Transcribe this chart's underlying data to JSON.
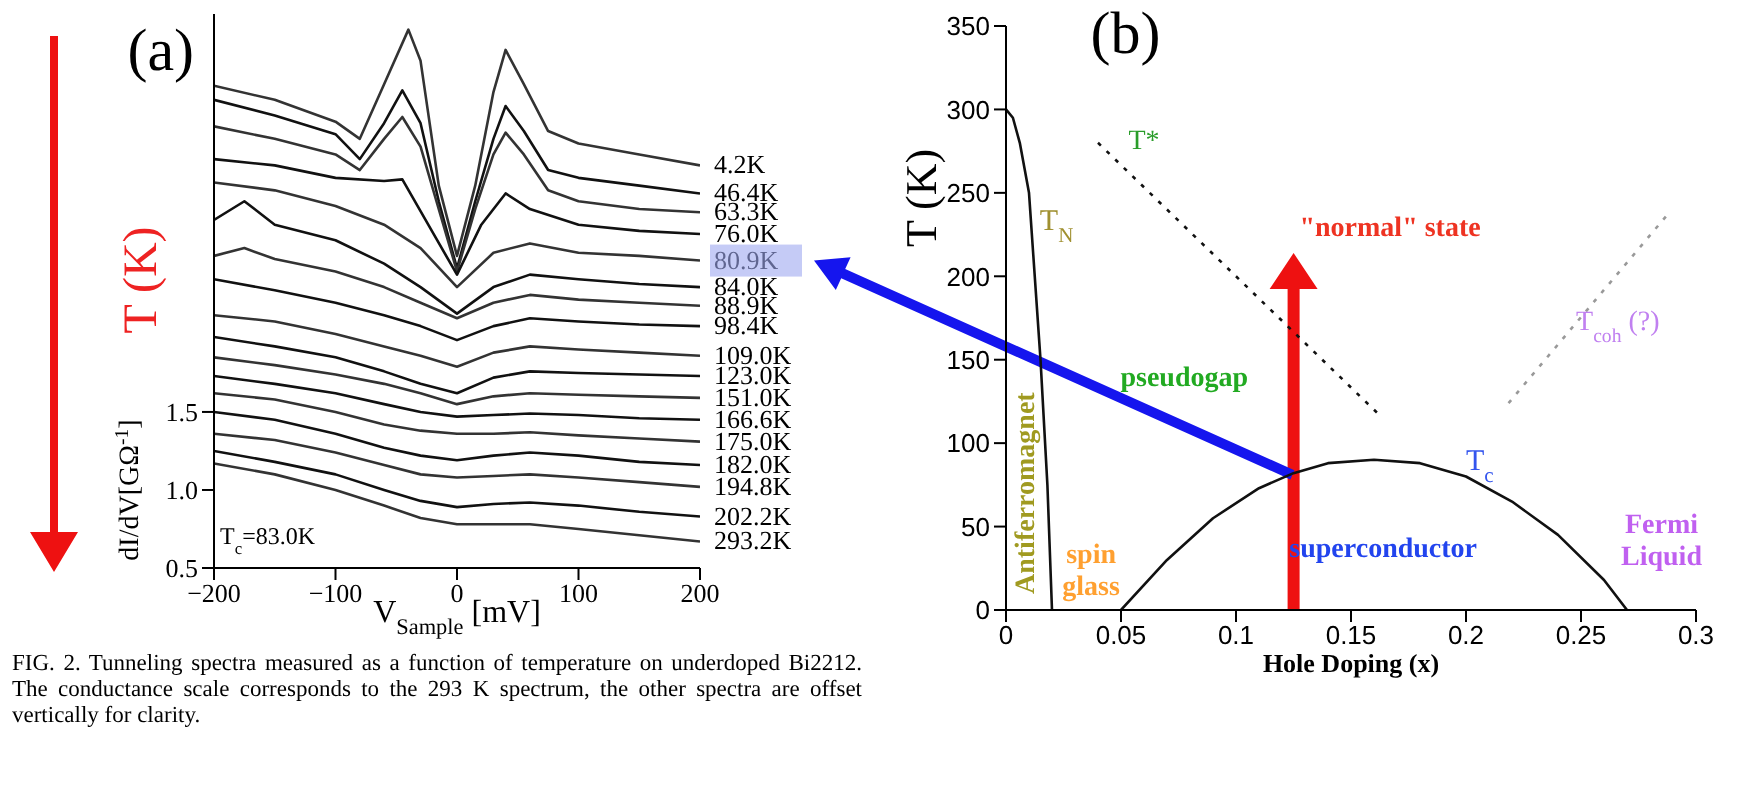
{
  "chart_data": [
    {
      "type": "line",
      "xlabel": "V$_{Sample}$ [mV]",
      "ylabel": "dI/dV[GΩ$^{-1}$]",
      "xlim": [
        -200,
        200
      ],
      "ylim": [
        0.5,
        4.05
      ],
      "xticks": [
        {
          "value": -200,
          "label": "−200"
        },
        {
          "value": -100,
          "label": "−100"
        },
        0,
        100,
        200
      ],
      "yticks": [
        0.5,
        {
          "value": 1,
          "label": "1.0"
        },
        1.5
      ],
      "grid": false,
      "legend": false,
      "marker": "none",
      "line_style": "solid",
      "annotations": [
        "(a)",
        "T (K)",
        "T$_{c}$=83.0K",
        "FIG. 2.  Tunneling spectra measured as a function of temperature on underdoped Bi2212. The conductance scale corresponds to the 293 K spectrum, the other spectra are offset vertically for clarity."
      ],
      "series": [
        {
          "name": "4.2K",
          "color": "#333333",
          "x": [
            -200,
            -150,
            -100,
            -80,
            -60,
            -40,
            -30,
            -15,
            0,
            15,
            30,
            40,
            55,
            75,
            100,
            150,
            200
          ],
          "values": [
            3.59,
            3.5,
            3.36,
            3.25,
            3.6,
            3.95,
            3.75,
            2.95,
            2.5,
            2.95,
            3.55,
            3.82,
            3.6,
            3.3,
            3.22,
            3.15,
            3.08
          ]
        },
        {
          "name": "46.4K",
          "color": "#111111",
          "x": [
            -200,
            -150,
            -100,
            -80,
            -60,
            -45,
            -30,
            -15,
            0,
            15,
            30,
            40,
            55,
            75,
            100,
            150,
            200
          ],
          "values": [
            3.5,
            3.4,
            3.28,
            3.12,
            3.35,
            3.56,
            3.35,
            2.85,
            2.42,
            2.85,
            3.25,
            3.46,
            3.3,
            3.05,
            3.0,
            2.95,
            2.9
          ]
        },
        {
          "name": "63.3K",
          "color": "#333333",
          "x": [
            -200,
            -150,
            -100,
            -80,
            -60,
            -45,
            -30,
            -15,
            0,
            15,
            30,
            40,
            55,
            75,
            100,
            150,
            200
          ],
          "values": [
            3.33,
            3.25,
            3.15,
            3.05,
            3.25,
            3.39,
            3.2,
            2.8,
            2.4,
            2.8,
            3.15,
            3.29,
            3.15,
            2.92,
            2.85,
            2.8,
            2.78
          ]
        },
        {
          "name": "76.0K",
          "color": "#111111",
          "x": [
            -200,
            -150,
            -100,
            -60,
            -45,
            -20,
            0,
            20,
            40,
            60,
            100,
            150,
            200
          ],
          "values": [
            3.12,
            3.08,
            3.0,
            2.98,
            2.99,
            2.65,
            2.38,
            2.7,
            2.9,
            2.8,
            2.7,
            2.66,
            2.64
          ]
        },
        {
          "name": "80.9K",
          "color": "#333333",
          "x": [
            -200,
            -150,
            -100,
            -60,
            -30,
            0,
            30,
            60,
            100,
            150,
            200
          ],
          "values": [
            2.97,
            2.92,
            2.82,
            2.7,
            2.55,
            2.3,
            2.52,
            2.58,
            2.52,
            2.5,
            2.47
          ]
        },
        {
          "name": "84.0K",
          "color": "#111111",
          "x": [
            -200,
            -175,
            -150,
            -100,
            -60,
            -30,
            0,
            30,
            60,
            100,
            150,
            200
          ],
          "values": [
            2.73,
            2.85,
            2.7,
            2.6,
            2.45,
            2.3,
            2.13,
            2.3,
            2.38,
            2.35,
            2.32,
            2.3
          ]
        },
        {
          "name": "88.9K",
          "color": "#333333",
          "x": [
            -200,
            -175,
            -150,
            -100,
            -60,
            -30,
            0,
            30,
            60,
            100,
            150,
            200
          ],
          "values": [
            2.5,
            2.55,
            2.48,
            2.4,
            2.3,
            2.2,
            2.1,
            2.2,
            2.25,
            2.22,
            2.2,
            2.18
          ]
        },
        {
          "name": "98.4K",
          "color": "#111111",
          "x": [
            -200,
            -150,
            -100,
            -60,
            -30,
            0,
            30,
            60,
            100,
            150,
            200
          ],
          "values": [
            2.35,
            2.28,
            2.2,
            2.12,
            2.05,
            1.96,
            2.05,
            2.1,
            2.08,
            2.06,
            2.05
          ]
        },
        {
          "name": "109.0K",
          "color": "#333333",
          "x": [
            -200,
            -150,
            -100,
            -60,
            -30,
            0,
            30,
            60,
            100,
            150,
            200
          ],
          "values": [
            2.12,
            2.08,
            2.0,
            1.92,
            1.86,
            1.79,
            1.88,
            1.92,
            1.9,
            1.88,
            1.86
          ]
        },
        {
          "name": "123.0K",
          "color": "#111111",
          "x": [
            -200,
            -150,
            -100,
            -60,
            -30,
            0,
            30,
            60,
            100,
            150,
            200
          ],
          "values": [
            1.98,
            1.92,
            1.85,
            1.76,
            1.68,
            1.62,
            1.72,
            1.76,
            1.75,
            1.74,
            1.73
          ]
        },
        {
          "name": "151.0K",
          "color": "#333333",
          "x": [
            -200,
            -150,
            -100,
            -60,
            -30,
            0,
            30,
            60,
            100,
            150,
            200
          ],
          "values": [
            1.85,
            1.8,
            1.74,
            1.68,
            1.62,
            1.55,
            1.6,
            1.62,
            1.61,
            1.6,
            1.59
          ]
        },
        {
          "name": "166.6K",
          "color": "#111111",
          "x": [
            -200,
            -150,
            -100,
            -60,
            -30,
            0,
            30,
            60,
            100,
            150,
            200
          ],
          "values": [
            1.73,
            1.68,
            1.62,
            1.55,
            1.5,
            1.47,
            1.48,
            1.49,
            1.48,
            1.46,
            1.45
          ]
        },
        {
          "name": "175.0K",
          "color": "#333333",
          "x": [
            -200,
            -150,
            -100,
            -60,
            -30,
            0,
            30,
            60,
            100,
            150,
            200
          ],
          "values": [
            1.62,
            1.58,
            1.5,
            1.42,
            1.38,
            1.36,
            1.36,
            1.37,
            1.35,
            1.33,
            1.31
          ]
        },
        {
          "name": "182.0K",
          "color": "#111111",
          "x": [
            -200,
            -150,
            -100,
            -60,
            -30,
            0,
            30,
            60,
            100,
            150,
            200
          ],
          "values": [
            1.5,
            1.45,
            1.36,
            1.27,
            1.22,
            1.19,
            1.22,
            1.24,
            1.22,
            1.18,
            1.16
          ]
        },
        {
          "name": "194.8K",
          "color": "#333333",
          "x": [
            -200,
            -150,
            -100,
            -60,
            -30,
            0,
            30,
            60,
            100,
            150,
            200
          ],
          "values": [
            1.36,
            1.32,
            1.24,
            1.16,
            1.1,
            1.08,
            1.09,
            1.1,
            1.08,
            1.05,
            1.02
          ]
        },
        {
          "name": "202.2K",
          "color": "#111111",
          "x": [
            -200,
            -150,
            -100,
            -60,
            -30,
            0,
            30,
            60,
            100,
            150,
            200
          ],
          "values": [
            1.25,
            1.18,
            1.1,
            1.0,
            0.93,
            0.89,
            0.91,
            0.92,
            0.9,
            0.86,
            0.83
          ]
        },
        {
          "name": "293.2K",
          "color": "#333333",
          "x": [
            -200,
            -150,
            -100,
            -60,
            -30,
            0,
            30,
            60,
            100,
            150,
            200
          ],
          "values": [
            1.17,
            1.1,
            1.0,
            0.9,
            0.82,
            0.78,
            0.78,
            0.78,
            0.75,
            0.71,
            0.67
          ]
        }
      ]
    },
    {
      "type": "line",
      "xlabel": "Hole Doping (x)",
      "ylabel": "T (K)",
      "xlim": [
        0,
        0.3
      ],
      "ylim": [
        0,
        350
      ],
      "xticks": [
        0,
        0.05,
        0.1,
        0.15,
        0.2,
        0.25,
        0.3
      ],
      "yticks": [
        0,
        50,
        100,
        150,
        200,
        250,
        300,
        350
      ],
      "grid": false,
      "legend": false,
      "marker": "none",
      "annotations": [
        "(b)",
        "T*",
        "T$_{N}$",
        "\"normal\" state",
        "T$_{coh}$ (?)",
        "pseudogap",
        "Antiferromagnet",
        "spin glass",
        "superconductor",
        "T$_{c}$",
        "Fermi Liquid"
      ],
      "series": [
        {
          "color": "#111111",
          "line_style": "solid",
          "x": [
            0,
            0.003,
            0.006,
            0.01,
            0.015,
            0.018,
            0.02
          ],
          "values": [
            300,
            295,
            280,
            250,
            150,
            75,
            0
          ]
        },
        {
          "color": "#111111",
          "line_style": "solid",
          "x": [
            0.05,
            0.07,
            0.09,
            0.11,
            0.125,
            0.14,
            0.16,
            0.18,
            0.2,
            0.22,
            0.24,
            0.26,
            0.27
          ],
          "values": [
            0,
            30,
            55,
            73,
            82,
            88,
            90,
            88,
            80,
            65,
            45,
            18,
            0
          ]
        },
        {
          "color": "#111111",
          "line_style": "dotted",
          "x": [
            0.04,
            0.163
          ],
          "values": [
            280,
            116
          ]
        },
        {
          "color": "#999999",
          "line_style": "dotted",
          "x": [
            0.2185,
            0.287
          ],
          "values": [
            124,
            236
          ]
        }
      ]
    }
  ]
}
